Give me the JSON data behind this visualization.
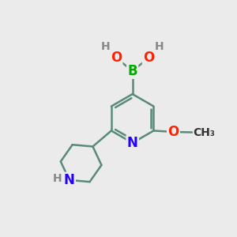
{
  "background_color": "#ebebeb",
  "bond_color": "#5a8a7a",
  "bond_width": 1.8,
  "atom_colors": {
    "B": "#00aa00",
    "O": "#ff2200",
    "N": "#2200ff",
    "H": "#888888",
    "C": "#333333"
  },
  "font_size_atom": 12,
  "font_size_small": 10
}
